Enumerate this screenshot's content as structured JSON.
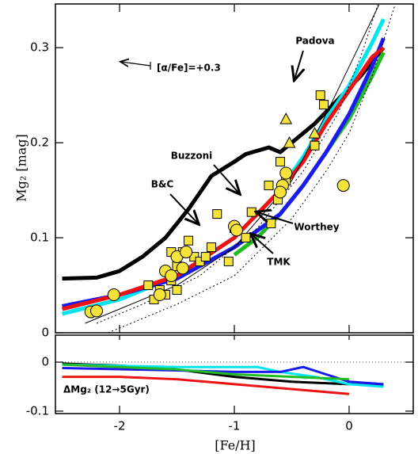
{
  "chart_data": {
    "type": "line",
    "xlabel": "[Fe/H]",
    "ylabel": "Mg₂ [mag]",
    "y2label": "",
    "xlim": [
      -2.559,
      0.559
    ],
    "xticks": [
      -2,
      -1,
      0
    ],
    "ylim": [
      0,
      0.346
    ],
    "yticks": [
      0,
      0.1,
      0.2,
      0.3
    ],
    "y2lim": [
      -0.105,
      0.055
    ],
    "y2ticks": [
      0,
      -0.1
    ],
    "y2ref": 0,
    "annotations": [
      "Padova",
      "Buzzoni",
      "B&C",
      "Worthey",
      "TMK",
      "[α/Fe]=+0.3",
      "ΔMg₂ (12→5Gyr)"
    ],
    "series": [
      {
        "color": "#000000",
        "width": 5,
        "x": [
          -2.5,
          -2.2,
          -2.0,
          -1.8,
          -1.6,
          -1.4,
          -1.2,
          -1.0,
          -0.9,
          -0.7,
          -0.6,
          -0.5,
          -0.3,
          -0.1,
          0.1,
          0.3
        ],
        "values": [
          0.057,
          0.058,
          0.065,
          0.08,
          0.1,
          0.13,
          0.165,
          0.18,
          0.188,
          0.195,
          0.19,
          0.2,
          0.22,
          0.245,
          0.27,
          0.3
        ]
      },
      {
        "color": "#00e5ee",
        "width": 5,
        "x": [
          -2.5,
          -2.0,
          -1.5,
          -1.0,
          -0.6,
          -0.4,
          -0.2,
          0,
          0.2,
          0.3
        ],
        "values": [
          0.02,
          0.035,
          0.06,
          0.1,
          0.15,
          0.185,
          0.225,
          0.26,
          0.305,
          0.33
        ]
      },
      {
        "color": "#22bb22",
        "width": 5,
        "x": [
          -1.0,
          -0.8,
          -0.6,
          -0.4,
          -0.2,
          0,
          0.2,
          0.3
        ],
        "values": [
          0.082,
          0.1,
          0.125,
          0.155,
          0.19,
          0.225,
          0.27,
          0.295
        ]
      },
      {
        "color": "#1a1aee",
        "width": 5,
        "x": [
          -2.5,
          -2.0,
          -1.5,
          -1.0,
          -0.6,
          -0.4,
          -0.2,
          0,
          0.2,
          0.3
        ],
        "values": [
          0.028,
          0.04,
          0.057,
          0.09,
          0.125,
          0.155,
          0.19,
          0.23,
          0.28,
          0.31
        ]
      },
      {
        "color": "#ee1111",
        "width": 5,
        "x": [
          -2.5,
          -2.0,
          -1.5,
          -1.0,
          -0.8,
          -0.6,
          -0.4,
          -0.2,
          0,
          0.2,
          0.3
        ],
        "values": [
          0.025,
          0.04,
          0.06,
          0.1,
          0.125,
          0.15,
          0.18,
          0.22,
          0.255,
          0.29,
          0.3
        ]
      },
      {
        "color": "#000000",
        "width": 1,
        "x": [
          -2.3,
          -2.0,
          -1.5,
          -1.0,
          -0.5,
          -0.2,
          0,
          0.2,
          0.26
        ],
        "values": [
          0.01,
          0.025,
          0.05,
          0.09,
          0.16,
          0.23,
          0.28,
          0.33,
          0.345
        ]
      },
      {
        "color": "#000000",
        "width": 1,
        "dash": true,
        "x": [
          -2.2,
          -1.8,
          -1.3,
          -0.8,
          -0.4,
          -0.1,
          0.1,
          0.25
        ],
        "values": [
          0.01,
          0.03,
          0.06,
          0.11,
          0.17,
          0.23,
          0.29,
          0.345
        ]
      },
      {
        "color": "#000000",
        "width": 1,
        "dash": true,
        "x": [
          -2.1,
          -1.5,
          -1.0,
          -0.5,
          -0.2,
          0,
          0.2,
          0.4
        ],
        "values": [
          0.0,
          0.03,
          0.06,
          0.12,
          0.17,
          0.21,
          0.27,
          0.345
        ]
      },
      {
        "color": "#000000",
        "width": 3,
        "axis": "y2",
        "x": [
          -2.5,
          -2.0,
          -1.5,
          -1.0,
          -0.5,
          0,
          0.3
        ],
        "values": [
          -0.003,
          -0.007,
          -0.015,
          -0.03,
          -0.04,
          -0.045,
          -0.047
        ]
      },
      {
        "color": "#00e5ee",
        "width": 3,
        "axis": "y2",
        "x": [
          -2.5,
          -1.5,
          -0.8,
          -0.6,
          -0.3,
          0,
          0.3
        ],
        "values": [
          -0.005,
          -0.01,
          -0.01,
          -0.02,
          -0.03,
          -0.045,
          -0.05
        ]
      },
      {
        "color": "#1a1aee",
        "width": 3,
        "axis": "y2",
        "x": [
          -2.5,
          -1.5,
          -1.0,
          -0.6,
          -0.4,
          -0.2,
          0,
          0.3
        ],
        "values": [
          -0.012,
          -0.017,
          -0.02,
          -0.02,
          -0.01,
          -0.025,
          -0.04,
          -0.045
        ]
      },
      {
        "color": "#22bb22",
        "width": 3,
        "axis": "y2",
        "x": [
          -2.5,
          -1.5,
          -1.0,
          0
        ],
        "values": [
          -0.005,
          -0.015,
          -0.025,
          -0.035
        ]
      },
      {
        "color": "#ee1111",
        "width": 3,
        "axis": "y2",
        "x": [
          -2.5,
          -2.0,
          -1.5,
          -1.0,
          -0.5,
          0
        ],
        "values": [
          -0.03,
          -0.03,
          -0.035,
          -0.045,
          -0.055,
          -0.065
        ]
      }
    ],
    "points": [
      {
        "marker": "square",
        "color": "#f5e33a",
        "x": [
          -1.75,
          -1.7,
          -1.65,
          -1.55,
          -1.5,
          -1.45,
          -1.4,
          -1.35,
          -1.3,
          -1.25,
          -1.2,
          -1.15,
          -1.05,
          -1.0,
          -0.9,
          -0.85,
          -0.7,
          -0.68,
          -0.62,
          -0.6,
          -0.55,
          -0.3,
          -0.25,
          -0.22,
          -1.55,
          -1.6,
          -1.5
        ],
        "values": [
          0.05,
          0.035,
          0.045,
          0.055,
          0.07,
          0.085,
          0.097,
          0.08,
          0.075,
          0.08,
          0.09,
          0.125,
          0.075,
          0.11,
          0.1,
          0.127,
          0.155,
          0.115,
          0.14,
          0.18,
          0.16,
          0.197,
          0.25,
          0.24,
          0.085,
          0.04,
          0.045
        ]
      },
      {
        "marker": "circle",
        "color": "#f5e33a",
        "x": [
          -2.25,
          -2.2,
          -2.05,
          -1.65,
          -1.6,
          -1.55,
          -1.5,
          -1.45,
          -1.42,
          -1.0,
          -0.98,
          -0.55,
          -0.58,
          -0.6,
          -0.05
        ],
        "values": [
          0.022,
          0.023,
          0.04,
          0.04,
          0.065,
          0.06,
          0.08,
          0.068,
          0.085,
          0.112,
          0.108,
          0.168,
          0.155,
          0.148,
          0.155
        ]
      },
      {
        "marker": "triangle",
        "color": "#f5e33a",
        "x": [
          -0.55,
          -0.52,
          -0.3
        ],
        "values": [
          0.225,
          0.2,
          0.21
        ]
      }
    ]
  }
}
